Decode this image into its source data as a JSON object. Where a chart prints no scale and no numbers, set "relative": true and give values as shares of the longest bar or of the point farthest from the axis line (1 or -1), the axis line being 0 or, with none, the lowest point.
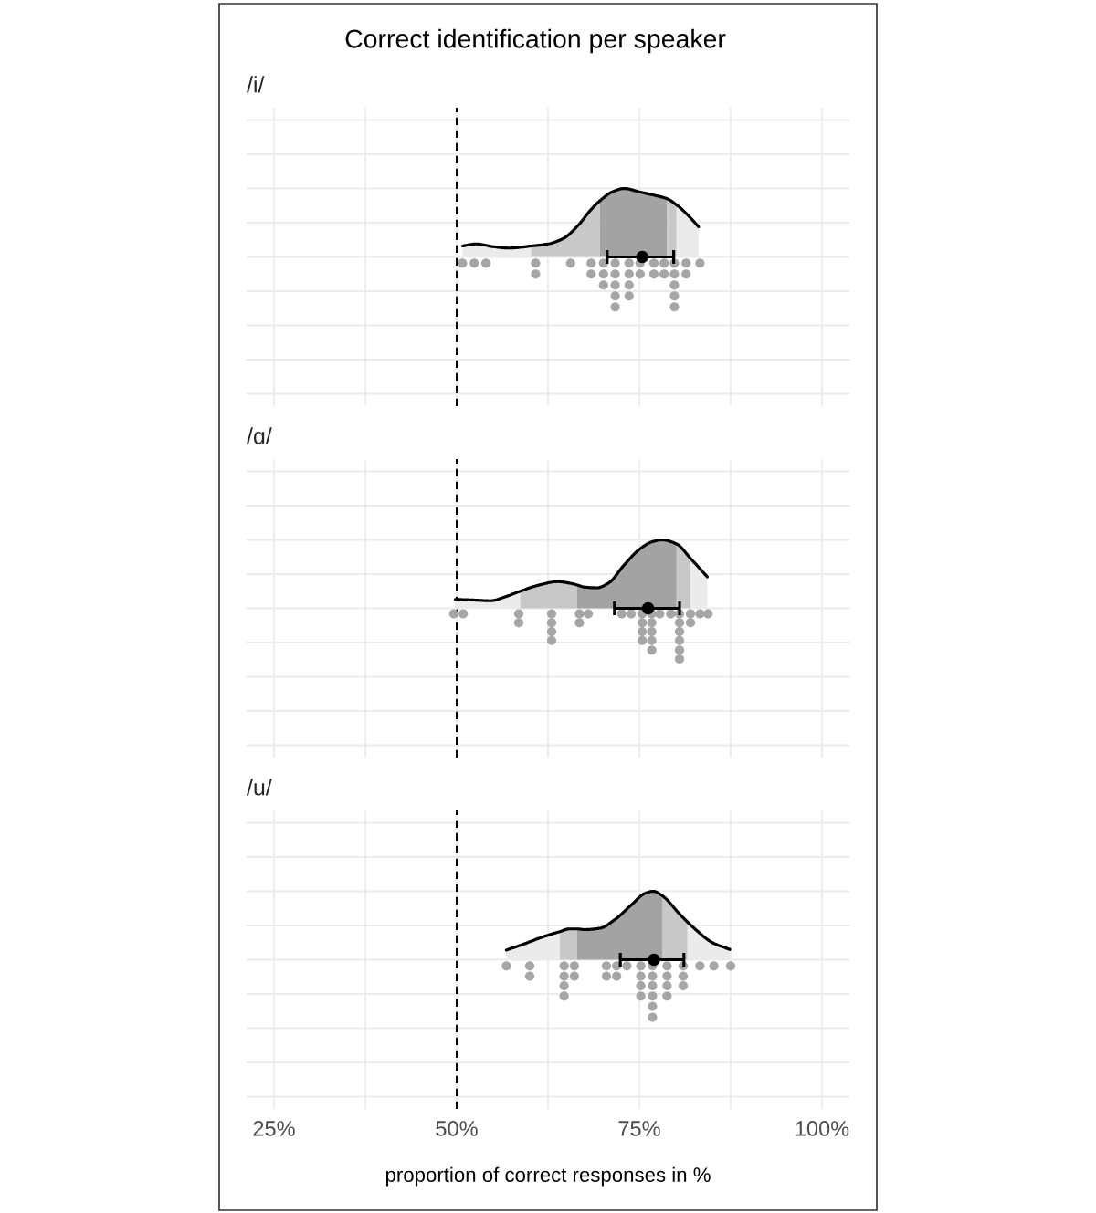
{
  "chart_data": [
    {
      "type": "area",
      "relative": true,
      "title": "Correct identification per speaker",
      "subtitle": "/i/",
      "xlim": [
        21.25,
        103.75
      ],
      "xticks": [
        {
          "value": 25,
          "label": null
        },
        {
          "value": 37.5,
          "label": null
        },
        {
          "value": 50,
          "label": null
        },
        {
          "value": 62.5,
          "label": null
        },
        {
          "value": 75,
          "label": null
        },
        {
          "value": 87.5,
          "label": null
        },
        {
          "value": 100,
          "label": null
        }
      ],
      "tick_labels": false,
      "grid": true,
      "ref_lines": [
        {
          "axis": "x",
          "value": 50,
          "color": "#000000",
          "line_style": "dashed"
        }
      ],
      "series": [
        {
          "color": "#ebebeb",
          "x": [
            50.8,
            52.7,
            55.0,
            57.1,
            60.2
          ],
          "values": [
            0.16,
            0.19,
            0.15,
            0.13,
            0.16
          ]
        },
        {
          "color": "#c8c8c8",
          "x": [
            60.2,
            62.5,
            64.6,
            66.7,
            68.3,
            69.6
          ],
          "values": [
            0.16,
            0.19,
            0.27,
            0.47,
            0.68,
            0.82
          ]
        },
        {
          "color": "#a3a3a3",
          "x": [
            69.6,
            71.3,
            72.9,
            75.0,
            77.1,
            78.8
          ],
          "values": [
            0.82,
            0.95,
            1.0,
            0.95,
            0.9,
            0.85
          ]
        },
        {
          "color": "#c8c8c8",
          "x": [
            78.8,
            80.1
          ],
          "values": [
            0.85,
            0.76
          ]
        },
        {
          "color": "#ebebeb",
          "x": [
            80.1,
            82.1,
            83.1
          ],
          "values": [
            0.76,
            0.56,
            0.44
          ]
        },
        {
          "type": "line",
          "color": "#000000",
          "x": [
            50.8,
            52.7,
            55.0,
            57.1,
            60.2,
            62.5,
            64.6,
            66.7,
            68.3,
            69.6,
            71.3,
            72.9,
            75.0,
            77.1,
            78.8,
            80.1,
            82.1,
            83.1
          ],
          "values": [
            0.16,
            0.19,
            0.15,
            0.13,
            0.16,
            0.19,
            0.27,
            0.47,
            0.68,
            0.82,
            0.95,
            1.0,
            0.95,
            0.9,
            0.85,
            0.76,
            0.56,
            0.44
          ]
        },
        {
          "type": "scatter",
          "marker": "circle",
          "color": "#a6a6a6",
          "x": [
            50.8,
            52.4,
            54.0,
            60.8,
            65.6,
            68.4,
            70.1,
            71.7,
            73.6,
            75.1,
            77.0,
            78.4,
            79.8,
            81.4,
            83.3,
            60.8,
            68.4,
            70.1,
            71.7,
            73.6,
            75.1,
            77.0,
            78.4,
            79.8,
            81.4,
            70.1,
            71.7,
            73.6,
            79.8,
            71.7,
            73.6,
            79.8,
            71.7,
            79.8
          ],
          "values": [
            -0.09,
            -0.09,
            -0.09,
            -0.09,
            -0.09,
            -0.09,
            -0.09,
            -0.09,
            -0.09,
            -0.09,
            -0.09,
            -0.09,
            -0.09,
            -0.09,
            -0.09,
            -0.25,
            -0.25,
            -0.25,
            -0.25,
            -0.25,
            -0.25,
            -0.25,
            -0.25,
            -0.25,
            -0.25,
            -0.41,
            -0.41,
            -0.41,
            -0.41,
            -0.57,
            -0.57,
            -0.57,
            -0.73,
            -0.73
          ]
        },
        {
          "type": "scatter",
          "marker": "circle",
          "color": "#000000",
          "x": [
            75.4
          ],
          "values": [
            0
          ],
          "xerrors": [
            [
              70.6,
              79.7
            ]
          ]
        }
      ]
    },
    {
      "type": "area",
      "relative": true,
      "subtitle": "/ɑ/",
      "xlim": [
        21.25,
        103.75
      ],
      "xticks": [
        {
          "value": 25,
          "label": null
        },
        {
          "value": 37.5,
          "label": null
        },
        {
          "value": 50,
          "label": null
        },
        {
          "value": 62.5,
          "label": null
        },
        {
          "value": 75,
          "label": null
        },
        {
          "value": 87.5,
          "label": null
        },
        {
          "value": 100,
          "label": null
        }
      ],
      "tick_labels": false,
      "grid": true,
      "ref_lines": [
        {
          "axis": "x",
          "value": 50,
          "color": "#000000",
          "line_style": "dashed"
        }
      ],
      "series": [
        {
          "color": "#ebebeb",
          "x": [
            49.8,
            52.5,
            54.6,
            56.7,
            58.7
          ],
          "values": [
            0.13,
            0.12,
            0.11,
            0.17,
            0.25
          ]
        },
        {
          "color": "#c8c8c8",
          "x": [
            58.7,
            61.3,
            63.8,
            65.8,
            66.5
          ],
          "values": [
            0.25,
            0.34,
            0.39,
            0.36,
            0.34
          ]
        },
        {
          "color": "#a3a3a3",
          "x": [
            66.5,
            67.5,
            69.2,
            70.8,
            72.9,
            75.0,
            76.7,
            78.1,
            80.1
          ],
          "values": [
            0.34,
            0.31,
            0.3,
            0.37,
            0.63,
            0.86,
            0.97,
            1.0,
            0.94
          ]
        },
        {
          "color": "#c8c8c8",
          "x": [
            80.1,
            82.0
          ],
          "values": [
            0.94,
            0.73
          ]
        },
        {
          "color": "#ebebeb",
          "x": [
            82.0,
            84.3
          ],
          "values": [
            0.73,
            0.46
          ]
        },
        {
          "type": "line",
          "color": "#000000",
          "x": [
            49.8,
            52.5,
            54.6,
            56.7,
            58.7,
            61.3,
            63.8,
            65.8,
            66.5,
            67.5,
            69.2,
            70.8,
            72.9,
            75.0,
            76.7,
            78.1,
            80.1,
            82.0,
            84.3
          ],
          "values": [
            0.13,
            0.12,
            0.11,
            0.17,
            0.25,
            0.34,
            0.39,
            0.36,
            0.34,
            0.31,
            0.3,
            0.37,
            0.63,
            0.86,
            0.97,
            1.0,
            0.94,
            0.73,
            0.46
          ]
        },
        {
          "type": "scatter",
          "marker": "circle",
          "color": "#a6a6a6",
          "x": [
            49.6,
            50.9,
            58.5,
            63.0,
            66.8,
            68.0,
            72.6,
            73.9,
            75.4,
            76.7,
            77.8,
            79.3,
            80.5,
            82.0,
            83.3,
            84.4,
            58.5,
            63.0,
            66.8,
            75.4,
            76.7,
            80.5,
            82.0,
            63.0,
            75.4,
            76.7,
            80.5,
            63.0,
            75.4,
            76.7,
            80.5,
            76.7,
            80.5,
            80.5
          ],
          "values": [
            -0.08,
            -0.08,
            -0.08,
            -0.08,
            -0.08,
            -0.08,
            -0.08,
            -0.08,
            -0.08,
            -0.08,
            -0.08,
            -0.08,
            -0.08,
            -0.08,
            -0.08,
            -0.08,
            -0.21,
            -0.21,
            -0.21,
            -0.21,
            -0.21,
            -0.21,
            -0.21,
            -0.34,
            -0.34,
            -0.34,
            -0.34,
            -0.47,
            -0.47,
            -0.47,
            -0.47,
            -0.61,
            -0.61,
            -0.74
          ]
        },
        {
          "type": "scatter",
          "marker": "circle",
          "color": "#000000",
          "x": [
            76.2
          ],
          "values": [
            0
          ],
          "xerrors": [
            [
              71.6,
              80.5
            ]
          ]
        }
      ]
    },
    {
      "type": "area",
      "relative": true,
      "subtitle": "/u/",
      "xlabel": "proportion of correct responses in %",
      "xlim": [
        21.25,
        103.75
      ],
      "xticks": [
        {
          "value": 25,
          "label": "25%"
        },
        {
          "value": 37.5,
          "label": null
        },
        {
          "value": 50,
          "label": "50%"
        },
        {
          "value": 62.5,
          "label": null
        },
        {
          "value": 75,
          "label": "75%"
        },
        {
          "value": 87.5,
          "label": null
        },
        {
          "value": 100,
          "label": "100%"
        }
      ],
      "tick_labels": "x",
      "grid": true,
      "ref_lines": [
        {
          "axis": "x",
          "value": 50,
          "color": "#000000",
          "line_style": "dashed"
        }
      ],
      "series": [
        {
          "color": "#ebebeb",
          "x": [
            56.8,
            59.2,
            61.7,
            64.1
          ],
          "values": [
            0.14,
            0.23,
            0.33,
            0.41
          ]
        },
        {
          "color": "#c8c8c8",
          "x": [
            64.1,
            65.4,
            66.5
          ],
          "values": [
            0.41,
            0.45,
            0.45
          ]
        },
        {
          "color": "#a3a3a3",
          "x": [
            66.5,
            67.5,
            69.6,
            71.7,
            73.8,
            75.8,
            76.9,
            78.2
          ],
          "values": [
            0.45,
            0.44,
            0.46,
            0.59,
            0.79,
            0.97,
            1.0,
            0.93
          ]
        },
        {
          "color": "#c8c8c8",
          "x": [
            78.2,
            80.4,
            81.6
          ],
          "values": [
            0.93,
            0.68,
            0.55
          ]
        },
        {
          "color": "#ebebeb",
          "x": [
            81.6,
            82.5,
            85.0,
            87.4
          ],
          "values": [
            0.55,
            0.46,
            0.25,
            0.15
          ]
        },
        {
          "type": "line",
          "color": "#000000",
          "x": [
            56.8,
            59.2,
            61.7,
            64.1,
            65.4,
            66.5,
            67.5,
            69.6,
            71.7,
            73.8,
            75.8,
            76.9,
            78.2,
            80.4,
            81.6,
            82.5,
            85.0,
            87.4
          ],
          "values": [
            0.14,
            0.23,
            0.33,
            0.41,
            0.45,
            0.45,
            0.44,
            0.46,
            0.59,
            0.79,
            0.97,
            1.0,
            0.93,
            0.68,
            0.55,
            0.46,
            0.25,
            0.15
          ]
        },
        {
          "type": "scatter",
          "marker": "circle",
          "color": "#a6a6a6",
          "x": [
            56.8,
            60.0,
            64.7,
            66.1,
            70.5,
            71.9,
            73.3,
            75.2,
            76.8,
            78.8,
            81.0,
            83.3,
            85.2,
            87.5,
            60.0,
            64.7,
            66.1,
            70.5,
            71.9,
            75.2,
            76.8,
            78.8,
            81.0,
            64.7,
            75.2,
            76.8,
            78.8,
            81.0,
            64.7,
            75.2,
            76.8,
            78.8,
            76.8,
            76.8
          ],
          "values": [
            -0.09,
            -0.09,
            -0.09,
            -0.09,
            -0.09,
            -0.09,
            -0.09,
            -0.09,
            -0.09,
            -0.09,
            -0.09,
            -0.09,
            -0.09,
            -0.09,
            -0.24,
            -0.24,
            -0.24,
            -0.24,
            -0.24,
            -0.24,
            -0.24,
            -0.24,
            -0.24,
            -0.38,
            -0.38,
            -0.38,
            -0.38,
            -0.38,
            -0.53,
            -0.53,
            -0.53,
            -0.53,
            -0.68,
            -0.84
          ]
        },
        {
          "type": "scatter",
          "marker": "circle",
          "color": "#000000",
          "x": [
            77.0
          ],
          "values": [
            0
          ],
          "xerrors": [
            [
              72.4,
              81.1
            ]
          ]
        }
      ]
    }
  ]
}
